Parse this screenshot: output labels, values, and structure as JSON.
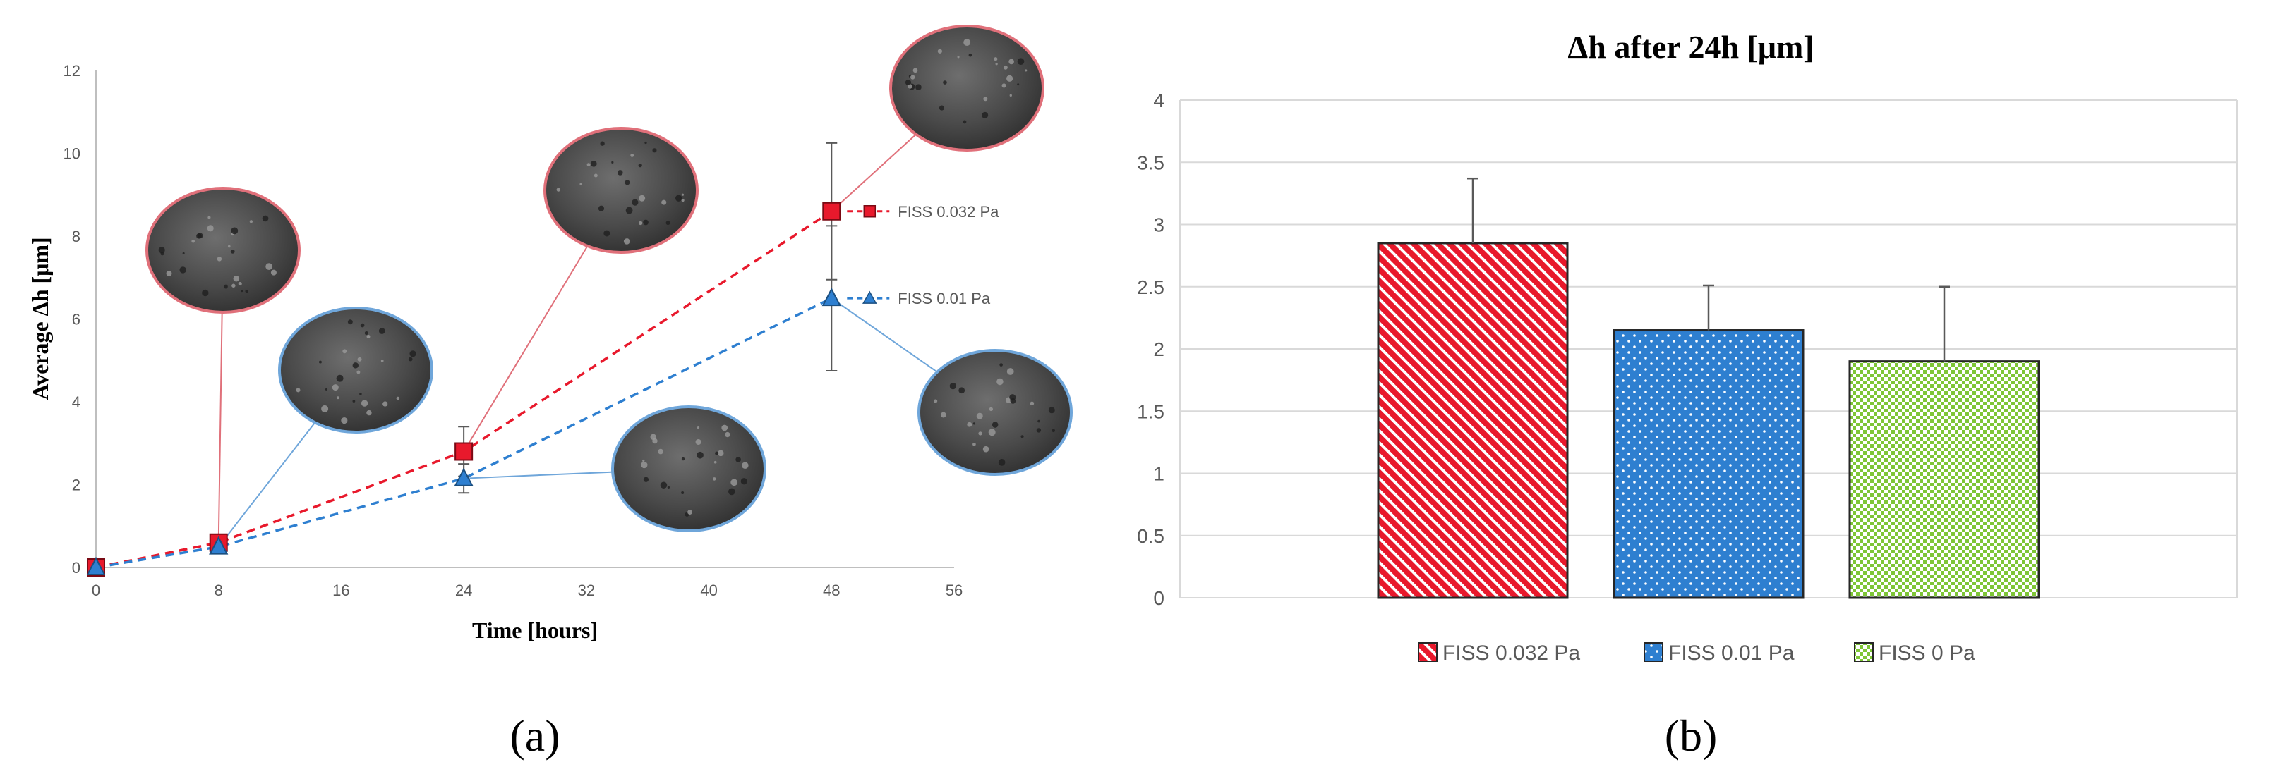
{
  "chart_data": [
    {
      "type": "line",
      "panel_label": "(a)",
      "xlabel": "Time [hours]",
      "ylabel": "Average Δh [μm]",
      "xlim": [
        0,
        56
      ],
      "ylim": [
        0,
        12
      ],
      "x_ticks": [
        "0",
        "8",
        "16",
        "24",
        "32",
        "40",
        "48",
        "56"
      ],
      "y_ticks": [
        "0",
        "2",
        "4",
        "6",
        "8",
        "10",
        "12"
      ],
      "grid": false,
      "legend_placement": "inline at line ends",
      "series": [
        {
          "name": "FISS 0.032 Pa",
          "marker": "square",
          "color": "#e8192c",
          "points": [
            {
              "x": 0,
              "y": 0,
              "err": 0
            },
            {
              "x": 8,
              "y": 0.6,
              "err": 0
            },
            {
              "x": 24,
              "y": 2.8,
              "err": 0.6
            },
            {
              "x": 48,
              "y": 8.6,
              "err": 1.65
            }
          ]
        },
        {
          "name": "FISS 0.01 Pa",
          "marker": "triangle",
          "color": "#2e7fd0",
          "points": [
            {
              "x": 0,
              "y": 0,
              "err": 0
            },
            {
              "x": 8,
              "y": 0.5,
              "err": 0
            },
            {
              "x": 24,
              "y": 2.15,
              "err": 0.35
            },
            {
              "x": 48,
              "y": 6.5,
              "err": 1.75
            }
          ]
        }
      ],
      "insets": [
        {
          "name": "sem-inset-8h-0.032pa",
          "color": "#e0707a",
          "x": 8,
          "y": 0.6
        },
        {
          "name": "sem-inset-8h-0.01pa",
          "color": "#6fa6da",
          "x": 8,
          "y": 0.5
        },
        {
          "name": "sem-inset-24h-0.032pa",
          "color": "#e0707a",
          "x": 24,
          "y": 2.8
        },
        {
          "name": "sem-inset-24h-0.01pa",
          "color": "#6fa6da",
          "x": 24,
          "y": 2.15
        },
        {
          "name": "sem-inset-48h-0.032pa",
          "color": "#e0707a",
          "x": 48,
          "y": 8.6
        },
        {
          "name": "sem-inset-48h-0.01pa",
          "color": "#6fa6da",
          "x": 48,
          "y": 6.5
        }
      ]
    },
    {
      "type": "bar",
      "panel_label": "(b)",
      "title": "Δh after 24h [μm]",
      "ylim": [
        0,
        4
      ],
      "y_ticks": [
        "0",
        "0.5",
        "1",
        "1.5",
        "2",
        "2.5",
        "3",
        "3.5",
        "4"
      ],
      "grid": true,
      "legend_placement": "bottom",
      "series": [
        {
          "name": "FISS 0.032 Pa",
          "value": 2.85,
          "err": 0.52,
          "color": "#e8192c",
          "pattern": "diagonal-stripes"
        },
        {
          "name": "FISS 0.01 Pa",
          "value": 2.15,
          "err": 0.36,
          "color": "#2e7fd0",
          "pattern": "dots"
        },
        {
          "name": "FISS 0 Pa",
          "value": 1.9,
          "err": 0.6,
          "color": "#7ec636",
          "pattern": "checker"
        }
      ]
    }
  ]
}
